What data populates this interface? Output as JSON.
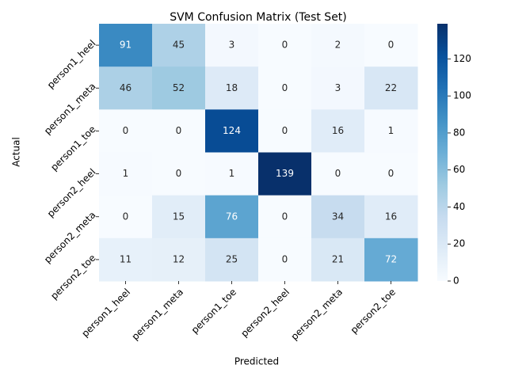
{
  "chart_data": {
    "type": "heatmap",
    "title": "SVM Confusion Matrix (Test Set)",
    "xlabel": "Predicted",
    "ylabel": "Actual",
    "x_categories": [
      "person1_heel",
      "person1_meta",
      "person1_toe",
      "person2_heel",
      "person2_meta",
      "person2_toe"
    ],
    "y_categories": [
      "person1_heel",
      "person1_meta",
      "person1_toe",
      "person2_heel",
      "person2_meta",
      "person2_toe"
    ],
    "values": [
      [
        91,
        45,
        3,
        0,
        2,
        0
      ],
      [
        46,
        52,
        18,
        0,
        3,
        22
      ],
      [
        0,
        0,
        124,
        0,
        16,
        1
      ],
      [
        1,
        0,
        1,
        139,
        0,
        0
      ],
      [
        0,
        15,
        76,
        0,
        34,
        16
      ],
      [
        11,
        12,
        25,
        0,
        21,
        72
      ]
    ],
    "colormap": "Blues",
    "clim": [
      0,
      139
    ],
    "cticks": [
      0,
      20,
      40,
      60,
      80,
      100,
      120
    ]
  }
}
